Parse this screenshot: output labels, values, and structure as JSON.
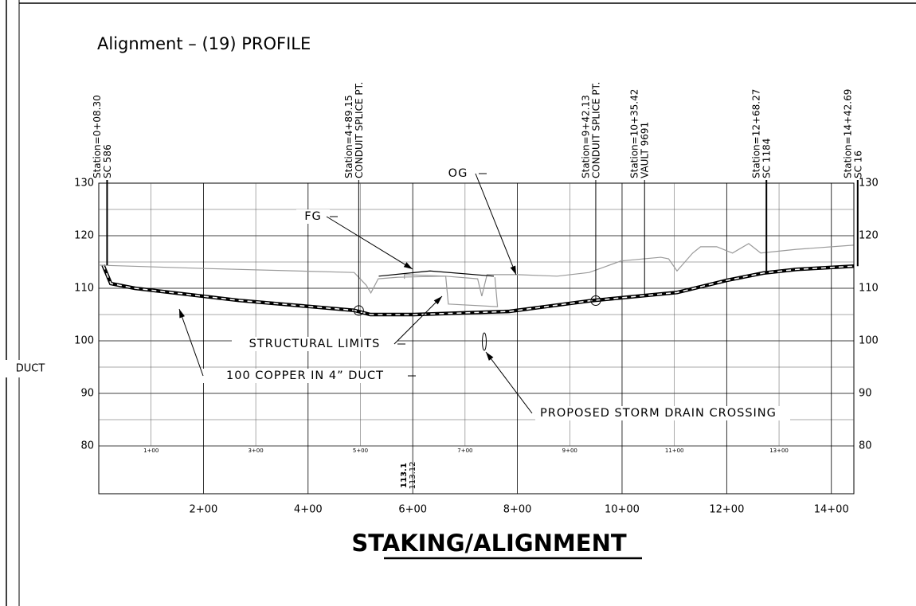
{
  "chart_data": {
    "type": "line",
    "title": "STAKING/ALIGNMENT",
    "subtitle": "Alignment – (19) PROFILE",
    "side_label": "DUCT",
    "xlim": [
      0,
      1443
    ],
    "ylim": [
      80,
      130
    ],
    "yticks": [
      80,
      90,
      100,
      110,
      120,
      130
    ],
    "yminor": [
      85,
      95,
      105,
      115,
      125
    ],
    "xticks": [
      {
        "value": 200,
        "label": "2+00"
      },
      {
        "value": 400,
        "label": "4+00"
      },
      {
        "value": 600,
        "label": "6+00"
      },
      {
        "value": 800,
        "label": "8+00"
      },
      {
        "value": 1000,
        "label": "10+00"
      },
      {
        "value": 1200,
        "label": "12+00"
      },
      {
        "value": 1400,
        "label": "14+00"
      }
    ],
    "xminor": [
      {
        "value": 100,
        "label": "1+00"
      },
      {
        "value": 300,
        "label": "3+00"
      },
      {
        "value": 500,
        "label": "5+00"
      },
      {
        "value": 700,
        "label": "7+00"
      },
      {
        "value": 900,
        "label": "9+00"
      },
      {
        "value": 1100,
        "label": "11+00"
      },
      {
        "value": 1300,
        "label": "13+00"
      }
    ],
    "grid": true,
    "series": [
      {
        "name": "100 COPPER IN 4” DUCT",
        "color": "#000000",
        "style": "dashed",
        "x": [
          8.3,
          23,
          69,
          267,
          488,
          519,
          603,
          785,
          937,
          1105,
          1200,
          1270,
          1334,
          1442.69
        ],
        "values": [
          114.4,
          110.9,
          110,
          107.7,
          105.8,
          105,
          105,
          105.6,
          107.6,
          109.2,
          111.5,
          112.9,
          113.6,
          114.2
        ]
      },
      {
        "name": "OG",
        "color": "#9a9a9a",
        "style": "solid",
        "x": [
          0,
          191,
          488,
          511,
          520,
          534,
          572,
          663,
          724,
          732,
          742,
          800,
          876,
          937,
          998,
          1074,
          1089,
          1105,
          1135,
          1150,
          1181,
          1211,
          1242,
          1265,
          1333,
          1442
        ],
        "values": [
          114.4,
          113.8,
          113,
          110.6,
          109.1,
          111.8,
          112.1,
          112.3,
          111.8,
          108.5,
          112.6,
          112.6,
          112.3,
          113,
          115.2,
          115.9,
          115.6,
          113.3,
          116.7,
          117.9,
          117.9,
          116.7,
          118.5,
          116.7,
          117.4,
          118.2
        ]
      },
      {
        "name": "FG",
        "color": "#000000",
        "style": "solid",
        "x": [
          535,
          633,
          755
        ],
        "values": [
          112.3,
          113.3,
          112.3
        ]
      },
      {
        "name": "STRUCTURAL LIMITS",
        "color": "#9a9a9a",
        "style": "solid",
        "x": [
          584,
          584,
          663,
          668,
          762,
          757
        ],
        "values": [
          111.8,
          112.6,
          112.3,
          107,
          106.5,
          112.1
        ]
      }
    ],
    "stations": [
      {
        "station": 8.3,
        "label": "Station=0+08.30",
        "desc": "SC 586"
      },
      {
        "station": 489.15,
        "label": "Station=4+89.15",
        "desc": "CONDUIT SPLICE PT."
      },
      {
        "station": 942.13,
        "label": "Station=9+42.13",
        "desc": "CONDUIT SPLICE PT."
      },
      {
        "station": 1035.42,
        "label": "Station=10+35.42",
        "desc": "VAULT 9691"
      },
      {
        "station": 1268.27,
        "label": "Station=12+68.27",
        "desc": "SC 1184"
      },
      {
        "station": 1442.69,
        "label": "Station=14+42.69",
        "desc": "SC 16"
      }
    ],
    "annotations": [
      "PROPOSED STORM DRAIN CROSSING"
    ],
    "band_labels": [
      "113.1",
      "113.12"
    ]
  }
}
